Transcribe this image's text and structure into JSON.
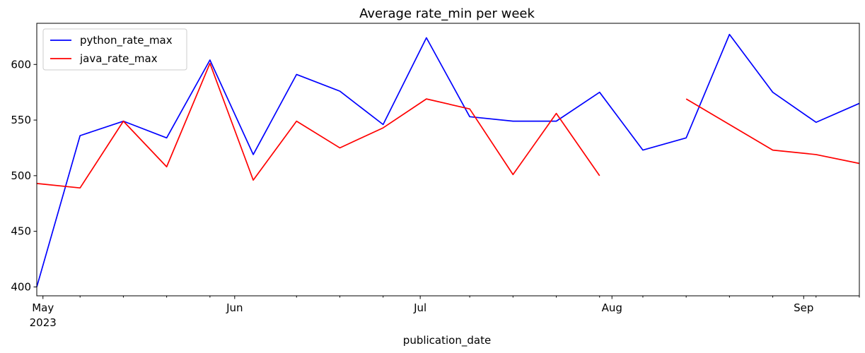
{
  "chart_data": {
    "type": "line",
    "title": "Average rate_min per week",
    "xlabel": "publication_date",
    "ylabel": "",
    "x": [
      "2023-04-30",
      "2023-05-07",
      "2023-05-14",
      "2023-05-21",
      "2023-05-28",
      "2023-06-04",
      "2023-06-11",
      "2023-06-18",
      "2023-06-25",
      "2023-07-02",
      "2023-07-09",
      "2023-07-16",
      "2023-07-23",
      "2023-07-30",
      "2023-08-06",
      "2023-08-13",
      "2023-08-20",
      "2023-08-27",
      "2023-09-03",
      "2023-09-10"
    ],
    "xlim": [
      "2023-04-30",
      "2023-09-10"
    ],
    "ylim": [
      392,
      637
    ],
    "yticks": [
      400,
      450,
      500,
      550,
      600
    ],
    "xticks_major": [
      {
        "date": "2023-05-01",
        "label": "May",
        "sublabel": "2023"
      },
      {
        "date": "2023-06-01",
        "label": "Jun",
        "sublabel": ""
      },
      {
        "date": "2023-07-01",
        "label": "Jul",
        "sublabel": ""
      },
      {
        "date": "2023-08-01",
        "label": "Aug",
        "sublabel": ""
      },
      {
        "date": "2023-09-01",
        "label": "Sep",
        "sublabel": ""
      }
    ],
    "xticks_minor": [
      "2023-05-07",
      "2023-05-14",
      "2023-05-21",
      "2023-05-28",
      "2023-06-11",
      "2023-06-18",
      "2023-06-25",
      "2023-07-09",
      "2023-07-16",
      "2023-07-23",
      "2023-07-30",
      "2023-08-06",
      "2023-08-13",
      "2023-08-20",
      "2023-08-27",
      "2023-09-03",
      "2023-09-10"
    ],
    "grid": false,
    "legend_position": "top-left",
    "series": [
      {
        "name": "python_rate_max",
        "color": "#0000ff",
        "values": [
          400,
          536,
          549,
          534,
          604,
          519,
          591,
          576,
          546,
          624,
          553,
          549,
          549,
          575,
          523,
          534,
          627,
          575,
          548,
          565
        ]
      },
      {
        "name": "java_rate_max",
        "color": "#ff0000",
        "values": [
          493,
          489,
          549,
          508,
          601,
          496,
          549,
          525,
          543,
          569,
          560,
          501,
          556,
          500,
          null,
          569,
          546,
          523,
          519,
          511
        ]
      }
    ]
  }
}
